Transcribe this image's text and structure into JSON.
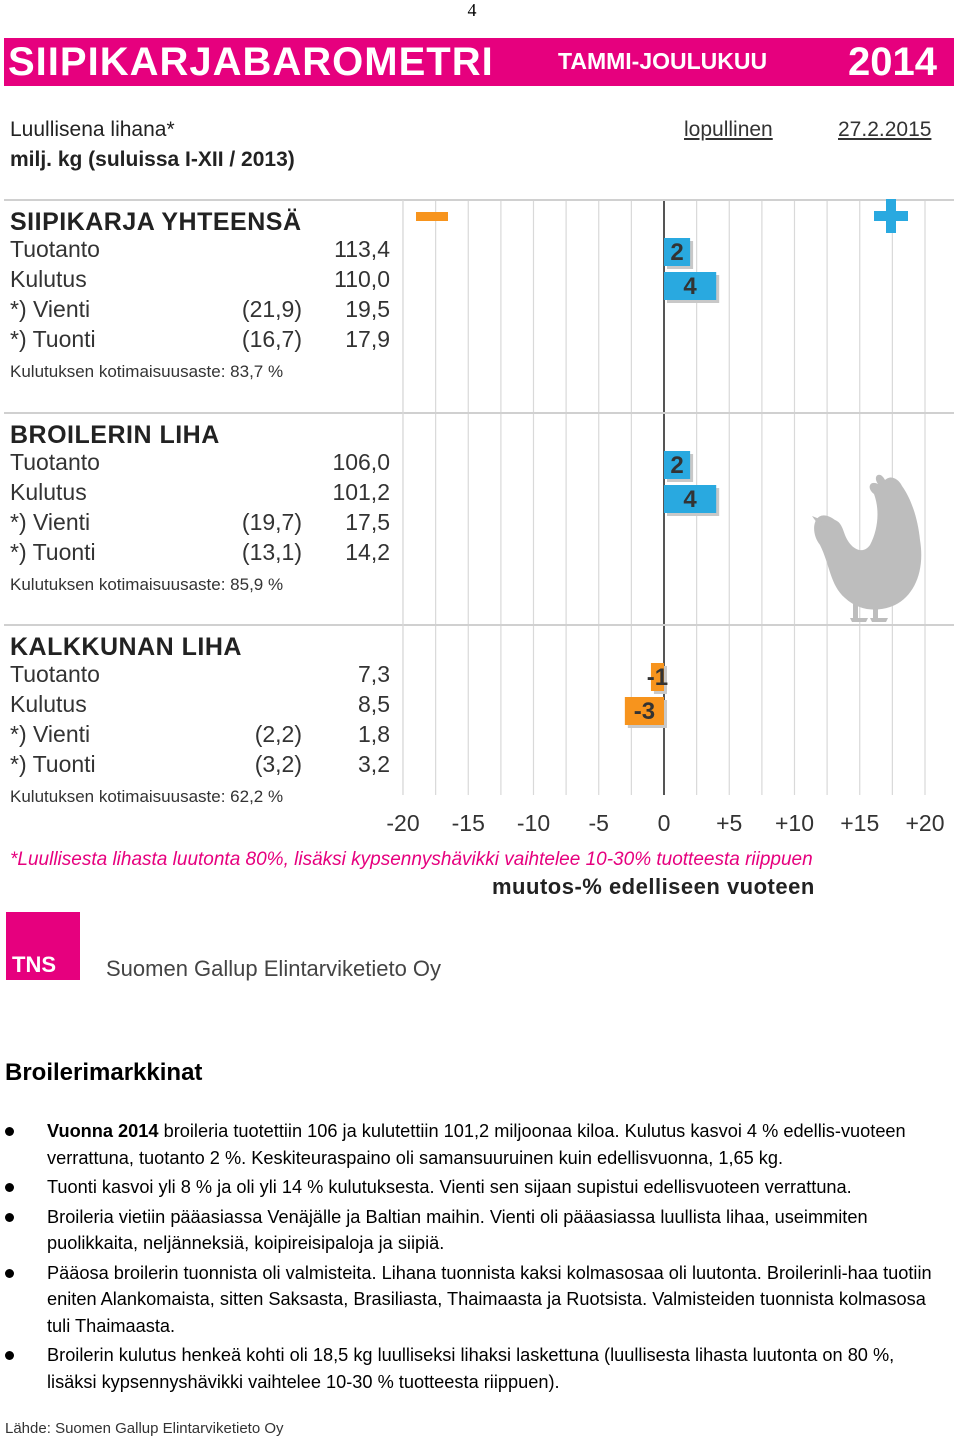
{
  "page_number": "4",
  "banner": {
    "title": "SIIPIKARJABAROMETRI",
    "period": "TAMMI-JOULUKUU",
    "year": "2014",
    "color": "#e6007e"
  },
  "unit_line1": "Luullisena lihana*",
  "unit_line2": "milj. kg (suluissa I-XII / 2013)",
  "status": "lopullinen",
  "status_date": "27.2.2015",
  "chart_data": {
    "type": "bar",
    "orientation": "horizontal",
    "xlim": [
      -20,
      20
    ],
    "xticks": [
      "-20",
      "-15",
      "-10",
      "-5",
      "0",
      "+5",
      "+10",
      "+15",
      "+20"
    ],
    "xlabel": "muutos-% edelliseen vuoteen",
    "grid": true,
    "minus_marker": "−",
    "plus_marker": "+",
    "colors": {
      "positive": "#29a9e0",
      "negative": "#f7941d",
      "minus_mark": "#f7941d",
      "plus_mark": "#29a9e0"
    },
    "sections": [
      {
        "title": "SIIPIKARJA YHTEENSÄ",
        "rows": [
          {
            "label": "Tuotanto",
            "prev": "",
            "value": "113,4"
          },
          {
            "label": "Kulutus",
            "prev": "",
            "value": "110,0"
          },
          {
            "label": "*) Vienti",
            "prev": "(21,9)",
            "value": "19,5"
          },
          {
            "label": "*) Tuonti",
            "prev": "(16,7)",
            "value": "17,9"
          }
        ],
        "share": "Kulutuksen kotimaisuusaste: 83,7 %",
        "bars": [
          {
            "series": "Tuotanto",
            "change": 2,
            "label": "2"
          },
          {
            "series": "Kulutus",
            "change": 4,
            "label": "4"
          }
        ]
      },
      {
        "title": "BROILERIN LIHA",
        "rows": [
          {
            "label": "Tuotanto",
            "prev": "",
            "value": "106,0"
          },
          {
            "label": "Kulutus",
            "prev": "",
            "value": "101,2"
          },
          {
            "label": "*) Vienti",
            "prev": "(19,7)",
            "value": "17,5"
          },
          {
            "label": "*) Tuonti",
            "prev": "(13,1)",
            "value": "14,2"
          }
        ],
        "share": "Kulutuksen kotimaisuusaste: 85,9 %",
        "bars": [
          {
            "series": "Tuotanto",
            "change": 2,
            "label": "2"
          },
          {
            "series": "Kulutus",
            "change": 4,
            "label": "4"
          }
        ]
      },
      {
        "title": "KALKKUNAN LIHA",
        "rows": [
          {
            "label": "Tuotanto",
            "prev": "",
            "value": "7,3"
          },
          {
            "label": "Kulutus",
            "prev": "",
            "value": "8,5"
          },
          {
            "label": "*) Vienti",
            "prev": "(2,2)",
            "value": "1,8"
          },
          {
            "label": "*) Tuonti",
            "prev": "(3,2)",
            "value": "3,2"
          }
        ],
        "share": "Kulutuksen kotimaisuusaste: 62,2 %",
        "bars": [
          {
            "series": "Tuotanto",
            "change": -1,
            "label": "-1"
          },
          {
            "series": "Kulutus",
            "change": -3,
            "label": "-3"
          }
        ]
      }
    ]
  },
  "footnote": "*Luullisesta lihasta luutonta 80%, lisäksi kypsennyshävikki vaihtelee 10-30% tuotteesta riippuen",
  "logo_text": "TNS",
  "company": "Suomen Gallup Elintarviketieto Oy",
  "text_heading": "Broilerimarkkinat",
  "bullets": [
    {
      "lead": "Vuonna 2014",
      "text": " broileria tuotettiin 106 ja kulutettiin 101,2 miljoonaa kiloa. Kulutus kasvoi 4 % edellis-vuoteen verrattuna, tuotanto 2 %. Keskiteuraspaino  oli samansuuruinen kuin edellisvuonna, 1,65 kg."
    },
    {
      "lead": "",
      "text": "Tuonti kasvoi yli 8 %  ja oli  yli 14 % kulutuksesta. Vienti sen sijaan supistui edellisvuoteen verrattuna."
    },
    {
      "lead": "",
      "text": "Broileria vietiin pääasiassa Venäjälle ja Baltian maihin. Vienti oli pääasiassa luullista lihaa, useimmiten puolikkaita, neljänneksiä, koipireisipaloja ja siipiä."
    },
    {
      "lead": "",
      "text": "Pääosa broilerin tuonnista oli valmisteita. Lihana tuonnista kaksi kolmasosaa oli luutonta. Broilerinli-haa tuotiin eniten Alankomaista, sitten Saksasta, Brasiliasta, Thaimaasta ja Ruotsista. Valmisteiden tuonnista kolmasosa tuli Thaimaasta."
    },
    {
      "lead": "",
      "text": "Broilerin kulutus henkeä kohti oli 18,5 kg luulliseksi lihaksi laskettuna (luullisesta lihasta luutonta on 80 %, lisäksi kypsennyshävikki vaihtelee 10-30 % tuotteesta riippuen)."
    }
  ],
  "source_label": "Lähde:",
  "source_value": "Suomen Gallup Elintarviketieto Oy"
}
